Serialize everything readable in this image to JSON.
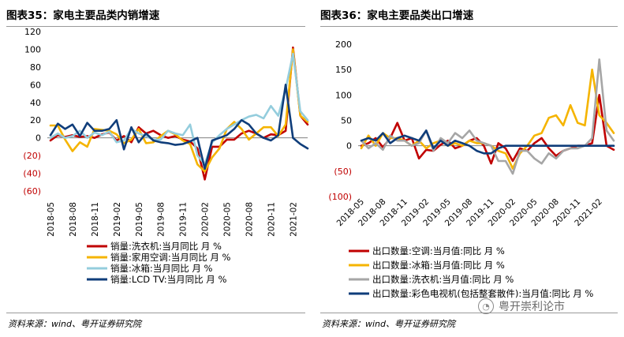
{
  "left": {
    "title": "图表35：家电主要品类内销增速",
    "source": "资料来源：wind、粤开证券研究院"
  },
  "right": {
    "title": "图表36：家电主要品类出口增速",
    "source": "资料来源：wind、粤开证券研究院"
  },
  "watermark": {
    "icon": "wechat-icon",
    "text": "粤开崇利论市"
  },
  "chart_data": [
    {
      "type": "line",
      "ylim": [
        -60,
        120
      ],
      "yticks": [
        -60,
        -40,
        -20,
        0,
        20,
        40,
        60,
        80,
        100,
        120
      ],
      "ytick_labels": [
        "(60)",
        "(40)",
        "(20)",
        "0",
        "20",
        "40",
        "60",
        "80",
        "100",
        "120"
      ],
      "xtick_labels": [
        "2018-05",
        "2018-08",
        "2018-11",
        "2019-02",
        "2019-05",
        "2019-08",
        "2019-11",
        "2020-02",
        "2020-05",
        "2020-08",
        "2020-11",
        "2021-02"
      ],
      "xtick_index": [
        0,
        3,
        6,
        9,
        12,
        15,
        18,
        21,
        24,
        27,
        30,
        33
      ],
      "x": [
        "2018-05",
        "2018-06",
        "2018-07",
        "2018-08",
        "2018-09",
        "2018-10",
        "2018-11",
        "2018-12",
        "2019-01",
        "2019-02",
        "2019-03",
        "2019-04",
        "2019-05",
        "2019-06",
        "2019-07",
        "2019-08",
        "2019-09",
        "2019-10",
        "2019-11",
        "2019-12",
        "2020-01",
        "2020-02",
        "2020-03",
        "2020-04",
        "2020-05",
        "2020-06",
        "2020-07",
        "2020-08",
        "2020-09",
        "2020-10",
        "2020-11",
        "2020-12",
        "2021-01",
        "2021-02",
        "2021-03",
        "2021-04"
      ],
      "grid": false,
      "legend_position": "bottom",
      "series": [
        {
          "name": "销量:洗衣机:当月同比  月 %",
          "color": "#c00000",
          "values": [
            -3,
            3,
            1,
            3,
            1,
            2,
            0,
            4,
            6,
            -3,
            2,
            -5,
            12,
            5,
            8,
            3,
            0,
            2,
            -2,
            -4,
            -12,
            -47,
            -10,
            -10,
            -2,
            -2,
            5,
            8,
            5,
            0,
            4,
            3,
            8,
            102,
            25,
            15
          ]
        },
        {
          "name": "销量:家用空调:当月同比  月 %",
          "color": "#f5b400",
          "values": [
            14,
            14,
            -2,
            -15,
            -5,
            -10,
            10,
            9,
            8,
            4,
            -6,
            -2,
            10,
            -6,
            -5,
            2,
            8,
            4,
            -3,
            -7,
            -30,
            -38,
            -22,
            -12,
            10,
            18,
            10,
            -2,
            5,
            12,
            12,
            2,
            15,
            100,
            25,
            18
          ]
        },
        {
          "name": "销量:冰箱:当月同比  月 %",
          "color": "#94cddd",
          "values": [
            0,
            5,
            0,
            2,
            8,
            0,
            6,
            3,
            7,
            -5,
            -3,
            10,
            5,
            2,
            -2,
            -2,
            8,
            5,
            3,
            15,
            -20,
            -30,
            -5,
            3,
            10,
            15,
            20,
            24,
            26,
            22,
            36,
            25,
            55,
            95,
            30,
            20
          ]
        },
        {
          "name": "销量:LCD TV:当月同比  月 %",
          "color": "#0f3d7a",
          "values": [
            3,
            16,
            10,
            15,
            2,
            17,
            8,
            8,
            10,
            20,
            -13,
            12,
            -5,
            5,
            -3,
            -5,
            -6,
            -8,
            -7,
            -4,
            0,
            -35,
            -3,
            0,
            3,
            10,
            20,
            15,
            5,
            0,
            -3,
            3,
            60,
            0,
            -7,
            -12
          ]
        }
      ]
    },
    {
      "type": "line",
      "ylim": [
        -100,
        200
      ],
      "yticks": [
        -100,
        -50,
        0,
        50,
        100,
        150,
        200
      ],
      "ytick_labels": [
        "(100)",
        "(50)",
        "0",
        "50",
        "100",
        "150",
        "200"
      ],
      "xtick_labels": [
        "2018-05",
        "2018-08",
        "2018-11",
        "2019-02",
        "2019-05",
        "2019-08",
        "2019-11",
        "2020-02",
        "2020-05",
        "2020-08",
        "2020-11",
        "2021-02"
      ],
      "xtick_index": [
        0,
        3,
        6,
        9,
        12,
        15,
        18,
        21,
        24,
        27,
        30,
        33
      ],
      "x": [
        "2018-05",
        "2018-06",
        "2018-07",
        "2018-08",
        "2018-09",
        "2018-10",
        "2018-11",
        "2018-12",
        "2019-01",
        "2019-02",
        "2019-03",
        "2019-04",
        "2019-05",
        "2019-06",
        "2019-07",
        "2019-08",
        "2019-09",
        "2019-10",
        "2019-11",
        "2019-12",
        "2020-01",
        "2020-02",
        "2020-03",
        "2020-04",
        "2020-05",
        "2020-06",
        "2020-07",
        "2020-08",
        "2020-09",
        "2020-10",
        "2020-11",
        "2020-12",
        "2021-01",
        "2021-02",
        "2021-03",
        "2021-04"
      ],
      "grid": false,
      "legend_position": "bottom",
      "series": [
        {
          "name": "出口数量:空调:当月值:同比  月 %",
          "color": "#c00000",
          "values": [
            0,
            5,
            15,
            -3,
            15,
            45,
            10,
            15,
            -25,
            -8,
            -10,
            2,
            10,
            -5,
            0,
            10,
            15,
            0,
            -35,
            5,
            -5,
            -30,
            -5,
            -10,
            5,
            15,
            -5,
            -20,
            -10,
            -5,
            0,
            0,
            5,
            100,
            0,
            -8
          ]
        },
        {
          "name": "出口数量:冰箱:当月值:同比  月 %",
          "color": "#f5b400",
          "values": [
            -5,
            20,
            0,
            25,
            15,
            15,
            10,
            0,
            10,
            -5,
            5,
            10,
            0,
            5,
            0,
            10,
            5,
            5,
            0,
            -10,
            -15,
            -45,
            -15,
            0,
            20,
            25,
            55,
            60,
            40,
            80,
            45,
            40,
            150,
            60,
            45,
            25
          ]
        },
        {
          "name": "出口数量:洗衣机:当月值:同比  月 %",
          "color": "#a6a6a6",
          "values": [
            10,
            -5,
            5,
            -8,
            20,
            10,
            10,
            0,
            5,
            30,
            -10,
            15,
            5,
            25,
            15,
            30,
            10,
            5,
            0,
            -30,
            -30,
            -55,
            -10,
            -10,
            -25,
            -35,
            -15,
            -25,
            -10,
            -5,
            -5,
            0,
            15,
            170,
            30,
            10
          ]
        },
        {
          "name": "出口数量:彩色电视机(包括整套散件):当月值:同比  月 %",
          "color": "#0f3d7a",
          "values": [
            10,
            15,
            10,
            25,
            5,
            15,
            20,
            15,
            10,
            30,
            -5,
            10,
            0,
            10,
            5,
            0,
            -10,
            -15,
            -15,
            -5,
            0,
            0,
            0,
            0,
            0,
            0,
            0,
            0,
            0,
            0,
            0,
            0,
            0,
            0,
            0,
            0
          ]
        }
      ]
    }
  ]
}
